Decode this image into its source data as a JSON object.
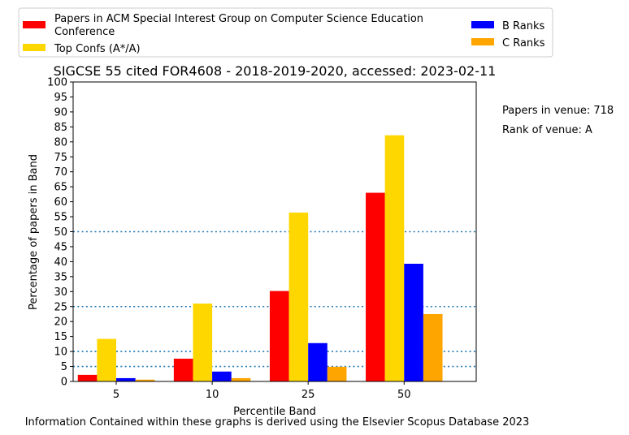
{
  "chart_data": {
    "type": "bar",
    "title": "SIGCSE 55 cited FOR4608 - 2018-2019-2020, accessed: 2023-02-11",
    "xlabel": "Percentile Band",
    "ylabel": "Percentage of papers in Band",
    "categories": [
      "5",
      "10",
      "25",
      "50"
    ],
    "ylim": [
      0,
      100
    ],
    "yticks": [
      0,
      5,
      10,
      15,
      20,
      25,
      30,
      35,
      40,
      45,
      50,
      55,
      60,
      65,
      70,
      75,
      80,
      85,
      90,
      95,
      100
    ],
    "reference_lines": [
      5,
      10,
      25,
      50
    ],
    "legend_position": "top (above chart, two columns)",
    "series": [
      {
        "name": "Papers in ACM Special Interest Group on Computer Science Education Conference",
        "color": "#ff0000",
        "values": [
          2.2,
          7.6,
          30.2,
          63.0
        ]
      },
      {
        "name": "Top Confs (A*/A)",
        "color": "#ffd700",
        "values": [
          14.2,
          26.0,
          56.4,
          82.2
        ]
      },
      {
        "name": "B Ranks",
        "color": "#0000ff",
        "values": [
          1.1,
          3.3,
          12.8,
          39.3
        ]
      },
      {
        "name": "C Ranks",
        "color": "#ffa500",
        "values": [
          0.6,
          1.1,
          4.9,
          22.5
        ]
      }
    ],
    "annotations": [
      "Papers in venue: 718",
      "Rank of venue: A"
    ],
    "footer": "Information Contained within these graphs is derived using the Elsevier Scopus Database 2023"
  }
}
